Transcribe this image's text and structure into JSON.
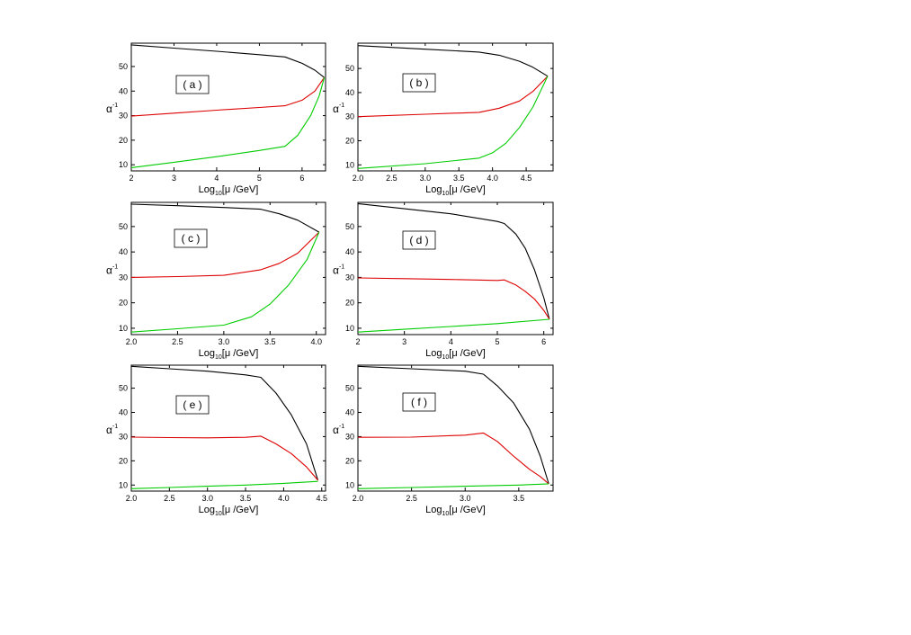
{
  "figure": {
    "ylabel_base": "α",
    "ylabel_sup": "-1",
    "xlabel_prefix": "Log",
    "xlabel_sub": "10",
    "xlabel_suffix": "[μ /GeV]"
  },
  "chart_data": [
    {
      "type": "line",
      "panel_label": "( a )",
      "xlim": [
        2,
        6.55
      ],
      "ylim": [
        7.5,
        59.5
      ],
      "xticks": [
        2,
        3,
        4,
        5,
        6
      ],
      "xtick_labels": [
        "2",
        "3",
        "4",
        "5",
        "6"
      ],
      "yticks": [
        10,
        20,
        30,
        40,
        50
      ],
      "ytick_labels": [
        "10",
        "20",
        "30",
        "40",
        "50"
      ],
      "series": [
        {
          "color": "#000000",
          "points": [
            [
              2,
              58.8
            ],
            [
              3,
              57.5
            ],
            [
              4,
              56.2
            ],
            [
              5,
              54.8
            ],
            [
              5.6,
              53.9
            ],
            [
              6.0,
              51.3
            ],
            [
              6.3,
              48.5
            ],
            [
              6.52,
              45.5
            ]
          ]
        },
        {
          "color": "#dd0000",
          "points": [
            [
              2,
              29.8
            ],
            [
              3,
              31.0
            ],
            [
              4,
              32.2
            ],
            [
              5,
              33.3
            ],
            [
              5.6,
              34.0
            ],
            [
              6.0,
              36.3
            ],
            [
              6.3,
              40.0
            ],
            [
              6.52,
              45.5
            ]
          ]
        },
        {
          "color": "#00cc00",
          "points": [
            [
              2,
              8.8
            ],
            [
              3,
              11.0
            ],
            [
              4,
              13.3
            ],
            [
              5,
              15.8
            ],
            [
              5.6,
              17.5
            ],
            [
              5.9,
              22.0
            ],
            [
              6.2,
              30.0
            ],
            [
              6.4,
              38.0
            ],
            [
              6.52,
              45.5
            ]
          ]
        }
      ]
    },
    {
      "type": "line",
      "panel_label": "( b )",
      "xlim": [
        2.0,
        4.9
      ],
      "ylim": [
        7.5,
        60.5
      ],
      "xticks": [
        2.0,
        2.5,
        3.0,
        3.5,
        4.0,
        4.5
      ],
      "xtick_labels": [
        "2.0",
        "2.5",
        "3.0",
        "3.5",
        "4.0",
        "4.5"
      ],
      "yticks": [
        10,
        20,
        30,
        40,
        50
      ],
      "ytick_labels": [
        "10",
        "20",
        "30",
        "40",
        "50"
      ],
      "series": [
        {
          "color": "#000000",
          "points": [
            [
              2.0,
              59.5
            ],
            [
              3.0,
              58.0
            ],
            [
              3.8,
              56.8
            ],
            [
              4.1,
              55.5
            ],
            [
              4.4,
              53.0
            ],
            [
              4.6,
              50.5
            ],
            [
              4.82,
              46.8
            ]
          ]
        },
        {
          "color": "#dd0000",
          "points": [
            [
              2.0,
              30.0
            ],
            [
              3.0,
              31.0
            ],
            [
              3.8,
              31.8
            ],
            [
              4.1,
              33.5
            ],
            [
              4.4,
              36.5
            ],
            [
              4.6,
              40.5
            ],
            [
              4.82,
              46.8
            ]
          ]
        },
        {
          "color": "#00cc00",
          "points": [
            [
              2.0,
              8.5
            ],
            [
              3.0,
              10.5
            ],
            [
              3.8,
              12.8
            ],
            [
              4.0,
              15.0
            ],
            [
              4.2,
              19.0
            ],
            [
              4.4,
              25.5
            ],
            [
              4.6,
              34.0
            ],
            [
              4.82,
              46.8
            ]
          ]
        }
      ]
    },
    {
      "type": "line",
      "panel_label": "( c )",
      "xlim": [
        2.0,
        4.1
      ],
      "ylim": [
        7.5,
        59.5
      ],
      "xticks": [
        2.0,
        2.5,
        3.0,
        3.5,
        4.0
      ],
      "xtick_labels": [
        "2.0",
        "2.5",
        "3.0",
        "3.5",
        "4.0"
      ],
      "yticks": [
        10,
        20,
        30,
        40,
        50
      ],
      "ytick_labels": [
        "10",
        "20",
        "30",
        "40",
        "50"
      ],
      "series": [
        {
          "color": "#000000",
          "points": [
            [
              2.0,
              58.8
            ],
            [
              2.5,
              58.2
            ],
            [
              3.0,
              57.5
            ],
            [
              3.4,
              56.8
            ],
            [
              3.6,
              55.0
            ],
            [
              3.8,
              52.5
            ],
            [
              4.03,
              47.8
            ]
          ]
        },
        {
          "color": "#dd0000",
          "points": [
            [
              2.0,
              30.0
            ],
            [
              2.5,
              30.3
            ],
            [
              3.0,
              30.8
            ],
            [
              3.4,
              33.0
            ],
            [
              3.6,
              35.5
            ],
            [
              3.8,
              39.5
            ],
            [
              4.03,
              47.8
            ]
          ]
        },
        {
          "color": "#00cc00",
          "points": [
            [
              2.0,
              8.5
            ],
            [
              2.5,
              9.8
            ],
            [
              3.0,
              11.2
            ],
            [
              3.3,
              14.5
            ],
            [
              3.5,
              19.5
            ],
            [
              3.7,
              27.0
            ],
            [
              3.9,
              37.0
            ],
            [
              4.03,
              47.8
            ]
          ]
        }
      ]
    },
    {
      "type": "line",
      "panel_label": "( d )",
      "xlim": [
        2,
        6.2
      ],
      "ylim": [
        7.5,
        59.5
      ],
      "xticks": [
        2,
        3,
        4,
        5,
        6
      ],
      "xtick_labels": [
        "2",
        "3",
        "4",
        "5",
        "6"
      ],
      "yticks": [
        10,
        20,
        30,
        40,
        50
      ],
      "ytick_labels": [
        "10",
        "20",
        "30",
        "40",
        "50"
      ],
      "series": [
        {
          "color": "#000000",
          "points": [
            [
              2,
              59.0
            ],
            [
              3,
              57.0
            ],
            [
              4,
              55.0
            ],
            [
              5,
              52.0
            ],
            [
              5.15,
              51.2
            ],
            [
              5.4,
              47.0
            ],
            [
              5.6,
              41.5
            ],
            [
              5.8,
              33.0
            ],
            [
              6.0,
              22.0
            ],
            [
              6.12,
              13.5
            ]
          ]
        },
        {
          "color": "#dd0000",
          "points": [
            [
              2,
              29.8
            ],
            [
              3,
              29.5
            ],
            [
              4,
              29.2
            ],
            [
              5,
              28.8
            ],
            [
              5.15,
              29.0
            ],
            [
              5.4,
              27.0
            ],
            [
              5.6,
              24.5
            ],
            [
              5.8,
              21.5
            ],
            [
              6.0,
              17.0
            ],
            [
              6.12,
              13.5
            ]
          ]
        },
        {
          "color": "#00cc00",
          "points": [
            [
              2,
              8.5
            ],
            [
              3,
              9.6
            ],
            [
              4,
              10.7
            ],
            [
              5,
              11.8
            ],
            [
              6.12,
              13.5
            ]
          ]
        }
      ]
    },
    {
      "type": "line",
      "panel_label": "( e )",
      "xlim": [
        2.0,
        4.55
      ],
      "ylim": [
        7.5,
        59.5
      ],
      "xticks": [
        2.0,
        2.5,
        3.0,
        3.5,
        4.0,
        4.5
      ],
      "xtick_labels": [
        "2.0",
        "2.5",
        "3.0",
        "3.5",
        "4.0",
        "4.5"
      ],
      "yticks": [
        10,
        20,
        30,
        40,
        50
      ],
      "ytick_labels": [
        "10",
        "20",
        "30",
        "40",
        "50"
      ],
      "series": [
        {
          "color": "#000000",
          "points": [
            [
              2.0,
              59.0
            ],
            [
              2.5,
              58.0
            ],
            [
              3.0,
              57.0
            ],
            [
              3.5,
              55.5
            ],
            [
              3.7,
              54.5
            ],
            [
              3.9,
              48.0
            ],
            [
              4.1,
              39.0
            ],
            [
              4.3,
              27.0
            ],
            [
              4.45,
              12.0
            ]
          ]
        },
        {
          "color": "#dd0000",
          "points": [
            [
              2.0,
              29.8
            ],
            [
              2.5,
              29.6
            ],
            [
              3.0,
              29.5
            ],
            [
              3.5,
              29.7
            ],
            [
              3.7,
              30.2
            ],
            [
              3.9,
              27.0
            ],
            [
              4.1,
              23.0
            ],
            [
              4.3,
              17.5
            ],
            [
              4.45,
              12.0
            ]
          ]
        },
        {
          "color": "#00cc00",
          "points": [
            [
              2.0,
              8.5
            ],
            [
              2.5,
              9.0
            ],
            [
              3.0,
              9.5
            ],
            [
              3.5,
              10.0
            ],
            [
              4.0,
              10.7
            ],
            [
              4.45,
              11.5
            ]
          ]
        }
      ]
    },
    {
      "type": "line",
      "panel_label": "( f )",
      "xlim": [
        2.0,
        3.82
      ],
      "ylim": [
        7.5,
        59.5
      ],
      "xticks": [
        2.0,
        2.5,
        3.0,
        3.5
      ],
      "xtick_labels": [
        "2.0",
        "2.5",
        "3.0",
        "3.5"
      ],
      "yticks": [
        10,
        20,
        30,
        40,
        50
      ],
      "ytick_labels": [
        "10",
        "20",
        "30",
        "40",
        "50"
      ],
      "series": [
        {
          "color": "#000000",
          "points": [
            [
              2.0,
              59.0
            ],
            [
              2.5,
              58.0
            ],
            [
              3.0,
              57.0
            ],
            [
              3.17,
              55.8
            ],
            [
              3.3,
              51.0
            ],
            [
              3.45,
              44.0
            ],
            [
              3.6,
              33.0
            ],
            [
              3.7,
              22.0
            ],
            [
              3.78,
              10.5
            ]
          ]
        },
        {
          "color": "#dd0000",
          "points": [
            [
              2.0,
              29.7
            ],
            [
              2.5,
              29.8
            ],
            [
              3.0,
              30.6
            ],
            [
              3.17,
              31.5
            ],
            [
              3.3,
              28.0
            ],
            [
              3.45,
              22.0
            ],
            [
              3.6,
              16.5
            ],
            [
              3.7,
              13.5
            ],
            [
              3.78,
              10.5
            ]
          ]
        },
        {
          "color": "#00cc00",
          "points": [
            [
              2.0,
              8.5
            ],
            [
              2.5,
              9.0
            ],
            [
              3.0,
              9.5
            ],
            [
              3.5,
              10.0
            ],
            [
              3.78,
              10.5
            ]
          ]
        }
      ]
    }
  ]
}
